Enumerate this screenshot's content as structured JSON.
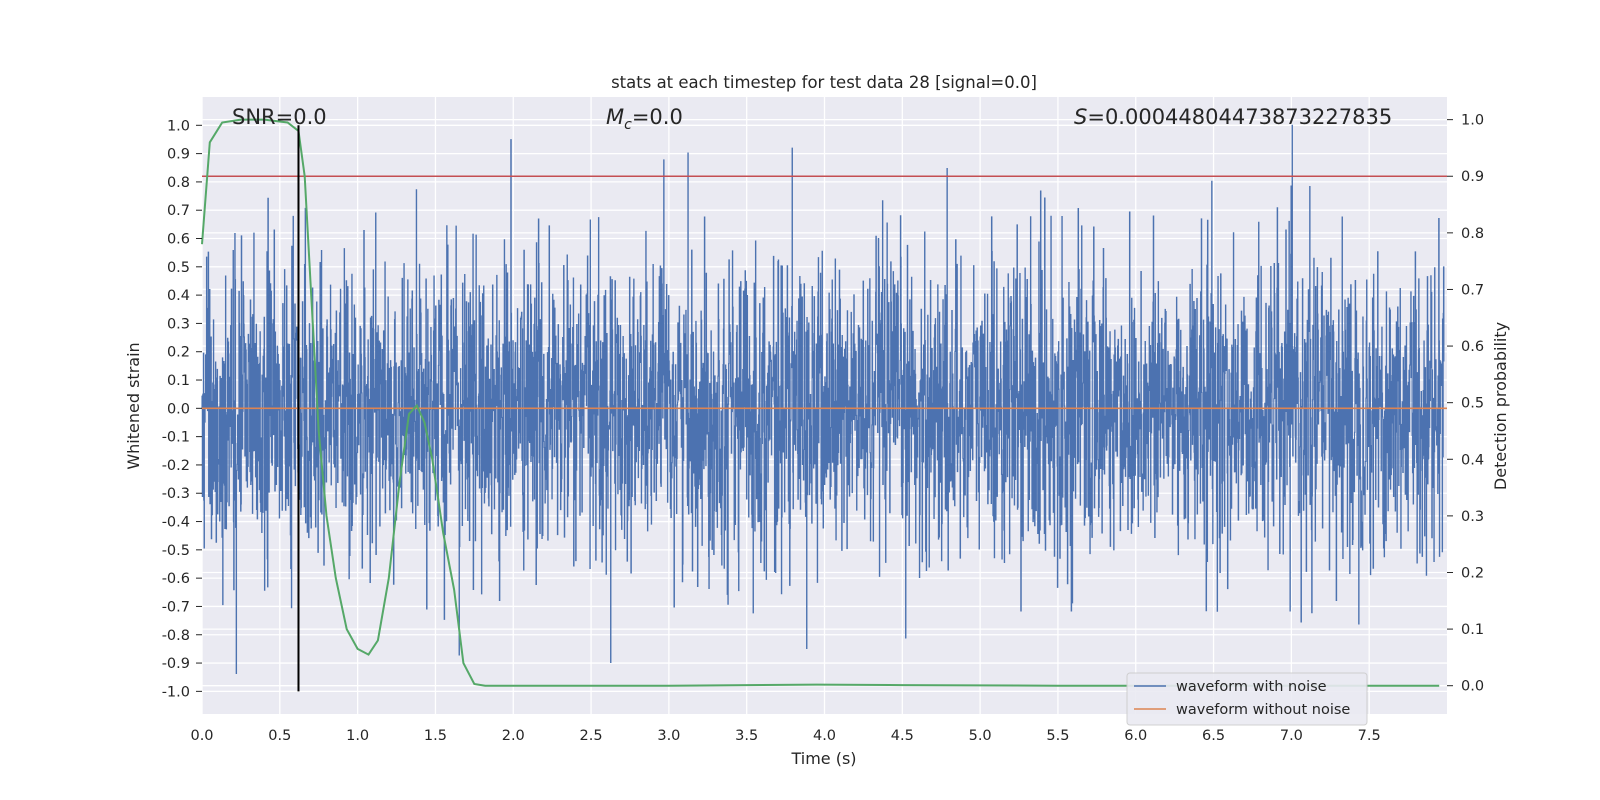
{
  "chart_data": {
    "type": "line",
    "title": "stats at each timestep for test data 28 [signal=0.0]",
    "xlabel": "Time (s)",
    "ylabel": "Whitened strain",
    "y2label": "Detection probability",
    "xlim": [
      0.0,
      8.0
    ],
    "ylim": [
      -1.08,
      1.1
    ],
    "y2lim": [
      -0.05,
      1.04
    ],
    "x_ticks": [
      0.0,
      0.5,
      1.0,
      1.5,
      2.0,
      2.5,
      3.0,
      3.5,
      4.0,
      4.5,
      5.0,
      5.5,
      6.0,
      6.5,
      7.0,
      7.5
    ],
    "x_tick_labels": [
      "0.0",
      "0.5",
      "1.0",
      "1.5",
      "2.0",
      "2.5",
      "3.0",
      "3.5",
      "4.0",
      "4.5",
      "5.0",
      "5.5",
      "6.0",
      "6.5",
      "7.0",
      "7.5"
    ],
    "y_ticks": [
      1.0,
      0.9,
      0.8,
      0.7,
      0.6,
      0.5,
      0.4,
      0.3,
      0.2,
      0.1,
      0.0,
      -0.1,
      -0.2,
      -0.3,
      -0.4,
      -0.5,
      -0.6,
      -0.7,
      -0.8,
      -0.9,
      -1.0
    ],
    "y_tick_labels": [
      "1.0",
      "0.9",
      "0.8",
      "0.7",
      "0.6",
      "0.5",
      "0.4",
      "0.3",
      "0.2",
      "0.1",
      "0.0",
      "-0.1",
      "-0.2",
      "-0.3",
      "-0.4",
      "-0.5",
      "-0.6",
      "-0.7",
      "-0.8",
      "-0.9",
      "-1.0"
    ],
    "y2_ticks": [
      1.0,
      0.9,
      0.8,
      0.7,
      0.6,
      0.5,
      0.4,
      0.3,
      0.2,
      0.1,
      0.0
    ],
    "y2_tick_labels": [
      "1.0",
      "0.9",
      "0.8",
      "0.7",
      "0.6",
      "0.5",
      "0.4",
      "0.3",
      "0.2",
      "0.1",
      "0.0"
    ],
    "annotations": {
      "snr": "SNR=0.0",
      "mc_symbol": "M",
      "mc_sub": "c",
      "mc_value": "=0.0",
      "s_symbol": "S",
      "s_value": "=0.00044804473873227835"
    },
    "series": [
      {
        "name": "waveform with noise",
        "color": "#4c72b0",
        "description": "dense whitened noise, amplitude mostly within ±0.5, peaks near ±1.0",
        "max_value": 1.0,
        "min_value": -0.97
      },
      {
        "name": "waveform without noise",
        "color": "#dd8452",
        "value": 0.0
      },
      {
        "name": "detection probability",
        "color": "#55a868",
        "axis": "right",
        "x": [
          0.0,
          0.05,
          0.13,
          0.25,
          0.4,
          0.55,
          0.62,
          0.66,
          0.7,
          0.75,
          0.8,
          0.86,
          0.93,
          1.0,
          1.07,
          1.13,
          1.2,
          1.27,
          1.33,
          1.38,
          1.43,
          1.48,
          1.55,
          1.62,
          1.68,
          1.75,
          1.82,
          2.0,
          3.0,
          3.95,
          4.5,
          5.5,
          6.5,
          7.5,
          7.95
        ],
        "values": [
          0.78,
          0.96,
          0.995,
          1.0,
          1.0,
          0.995,
          0.98,
          0.9,
          0.7,
          0.45,
          0.3,
          0.19,
          0.1,
          0.065,
          0.055,
          0.08,
          0.19,
          0.36,
          0.48,
          0.495,
          0.465,
          0.4,
          0.27,
          0.17,
          0.04,
          0.003,
          0.0,
          0.0,
          0.0,
          0.002,
          0.001,
          0.0,
          0.0,
          0.0,
          0.0
        ]
      }
    ],
    "threshold_line": {
      "color": "#c44e52",
      "value": 0.9,
      "axis": "right"
    },
    "marker_line": {
      "color": "#000000",
      "x": 0.62,
      "y_from": -1.0,
      "y_to": 1.0
    },
    "legend_position": "lower-right",
    "legend": [
      "waveform with noise",
      "waveform without noise"
    ]
  }
}
